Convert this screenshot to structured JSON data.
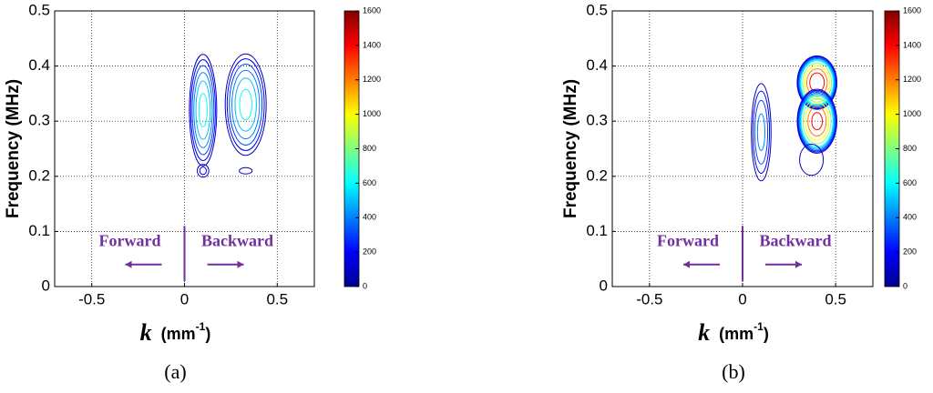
{
  "chart_data": [
    {
      "type": "contour",
      "panel_label": "(a)",
      "y_label": "Frequency (MHz)",
      "x_label": "k",
      "x_unit": "(mm",
      "x_unit_exponent": "-1",
      "x_unit_close": ")",
      "xlim": [
        -0.7,
        0.7
      ],
      "xticks": [
        -0.5,
        0,
        0.5
      ],
      "ylim": [
        0,
        0.5
      ],
      "yticks": [
        0,
        0.1,
        0.2,
        0.3,
        0.4,
        0.5
      ],
      "grid": true,
      "clim": [
        0,
        1600
      ],
      "cticks": [
        0,
        200,
        400,
        600,
        800,
        1000,
        1200,
        1400,
        1600
      ],
      "levels": [
        100,
        200,
        300,
        400,
        500,
        600,
        800,
        1000,
        1200,
        1400
      ],
      "peaks": [
        {
          "x": 0.1,
          "y": 0.32,
          "width": 0.08,
          "height": 0.11,
          "value": 650
        },
        {
          "x": 0.1,
          "y": 0.21,
          "width": 0.04,
          "height": 0.015,
          "value": 250
        },
        {
          "x": 0.33,
          "y": 0.33,
          "width": 0.12,
          "height": 0.1,
          "value": 650
        },
        {
          "x": 0.33,
          "y": 0.21,
          "width": 0.06,
          "height": 0.01,
          "value": 150
        }
      ],
      "annotations": [
        "Forward",
        "Backward"
      ]
    },
    {
      "type": "contour",
      "panel_label": "(b)",
      "y_label": "Frequency (MHz)",
      "x_label": "k",
      "x_unit": "(mm",
      "x_unit_exponent": "-1",
      "x_unit_close": ")",
      "xlim": [
        -0.7,
        0.7
      ],
      "xticks": [
        -0.5,
        0,
        0.5
      ],
      "ylim": [
        0,
        0.5
      ],
      "yticks": [
        0,
        0.1,
        0.2,
        0.3,
        0.4,
        0.5
      ],
      "grid": true,
      "clim": [
        0,
        1600
      ],
      "cticks": [
        0,
        200,
        400,
        600,
        800,
        1000,
        1200,
        1400,
        1600
      ],
      "levels": [
        100,
        200,
        300,
        400,
        500,
        600,
        800,
        1000,
        1200,
        1400
      ],
      "peaks": [
        {
          "x": 0.1,
          "y": 0.28,
          "width": 0.06,
          "height": 0.1,
          "value": 450
        },
        {
          "x": 0.4,
          "y": 0.37,
          "width": 0.11,
          "height": 0.05,
          "value": 1600
        },
        {
          "x": 0.4,
          "y": 0.3,
          "width": 0.11,
          "height": 0.06,
          "value": 1500
        },
        {
          "x": 0.37,
          "y": 0.23,
          "width": 0.09,
          "height": 0.04,
          "value": 200
        }
      ],
      "annotations": [
        "Forward",
        "Backward"
      ]
    }
  ]
}
